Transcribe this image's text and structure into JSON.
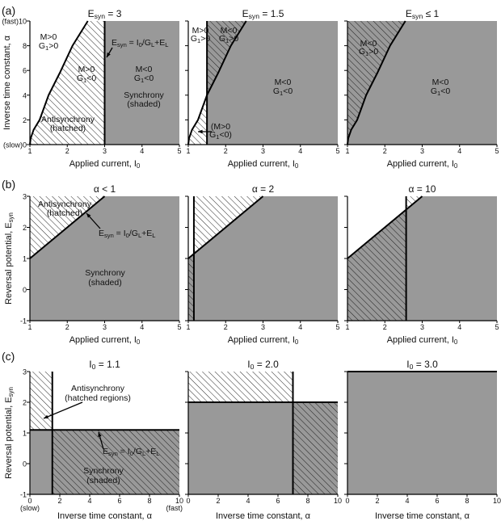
{
  "colors": {
    "shaded": "#999999",
    "hatch": "#111111",
    "line": "#000000",
    "background": "#ffffff"
  },
  "chart_data": [
    {
      "row_label": "(a)",
      "type": "region-map",
      "xlabel": "Applied current, I_{0}",
      "ylabel": "Inverse time constant, α",
      "xlim": [
        1,
        5
      ],
      "ylim": [
        0,
        10
      ],
      "xticks": [
        "1",
        "2",
        "3",
        "4",
        "5"
      ],
      "xtick_values": [
        1,
        2,
        3,
        4,
        5
      ],
      "yticks": [
        "(slow)0",
        "2",
        "4",
        "6",
        "8",
        "(fast)10"
      ],
      "ytick_values": [
        0,
        2,
        4,
        6,
        8,
        10
      ],
      "boundary_curve": {
        "I0": [
          1,
          1.02,
          1.1,
          1.26,
          1.5,
          1.8,
          2.14,
          2.55
        ],
        "alpha": [
          0,
          0.5,
          1.2,
          2,
          4,
          5.8,
          8,
          10
        ]
      },
      "panels": [
        {
          "title": "E_{syn} = 3",
          "vertical_line": 3,
          "annotations": [
            "M>0",
            "G_{1}>0",
            "M>0",
            "G_{1}<0",
            "Antisynchrony",
            "(hatched)",
            "E_{syn} = I_{0}/G_{L}+E_{L}",
            "M<0",
            "G_{1}<0",
            "Synchrony",
            "(shaded)"
          ]
        },
        {
          "title": "E_{syn} = 1.5",
          "vertical_line": 1.5,
          "annotations": [
            "M>0",
            "G_{1}>0",
            "M<0",
            "G_{1}>0",
            "M<0",
            "G_{1}<0",
            "(M>0",
            "G_{1}<0)"
          ]
        },
        {
          "title": "E_{syn} ≤ 1",
          "vertical_line": null,
          "annotations": [
            "M<0",
            "G_{1}>0",
            "M<0",
            "G_{1}<0"
          ]
        }
      ]
    },
    {
      "row_label": "(b)",
      "type": "region-map",
      "xlabel": "Applied current, I_{0}",
      "ylabel": "Reversal potential, E_{syn}",
      "xlim": [
        1,
        5
      ],
      "ylim": [
        -1,
        3
      ],
      "xticks": [
        "1",
        "2",
        "3",
        "4",
        "5"
      ],
      "xtick_values": [
        1,
        2,
        3,
        4,
        5
      ],
      "yticks": [
        "-1",
        "0",
        "1",
        "2",
        "3"
      ],
      "ytick_values": [
        -1,
        0,
        1,
        2,
        3
      ],
      "boundary_line": {
        "I0": [
          1,
          3
        ],
        "Esyn": [
          1,
          3
        ]
      },
      "panels": [
        {
          "title": "α < 1",
          "vertical_line": null,
          "annotations": [
            "Antisynchrony",
            "(hatched)",
            "E_{syn} = I_{0}/G_{L}+E_{L}",
            "Synchrony",
            "(shaded)"
          ]
        },
        {
          "title": "α = 2",
          "vertical_line": 1.15,
          "annotations": []
        },
        {
          "title": "α = 10",
          "vertical_line": 2.57,
          "annotations": []
        }
      ]
    },
    {
      "row_label": "(c)",
      "type": "region-map",
      "xlabel": "Inverse time constant, α",
      "ylabel": "Reversal potential, E_{syn}",
      "xlim": [
        0,
        10
      ],
      "ylim": [
        -1,
        3
      ],
      "xticks": [
        "0",
        "2",
        "4",
        "6",
        "8",
        "10"
      ],
      "xtick_values": [
        0,
        2,
        4,
        6,
        8,
        10
      ],
      "xtick_extra": [
        "(slow)",
        "(fast)"
      ],
      "yticks": [
        "-1",
        "0",
        "1",
        "2",
        "3"
      ],
      "ytick_values": [
        -1,
        0,
        1,
        2,
        3
      ],
      "panels": [
        {
          "title": "I_{0} = 1.1",
          "horizontal_line": 1.1,
          "vertical_line": 1.5,
          "annotations": [
            "Antisynchrony",
            "(hatched regions)",
            "E_{syn} = I_{0}/G_{L}+E_{L}",
            "Synchrony",
            "(shaded)"
          ]
        },
        {
          "title": "I_{0} = 2.0",
          "horizontal_line": 2.0,
          "vertical_line": 7,
          "annotations": []
        },
        {
          "title": "I_{0} = 3.0",
          "horizontal_line": 3.0,
          "vertical_line": null,
          "annotations": []
        }
      ]
    }
  ]
}
